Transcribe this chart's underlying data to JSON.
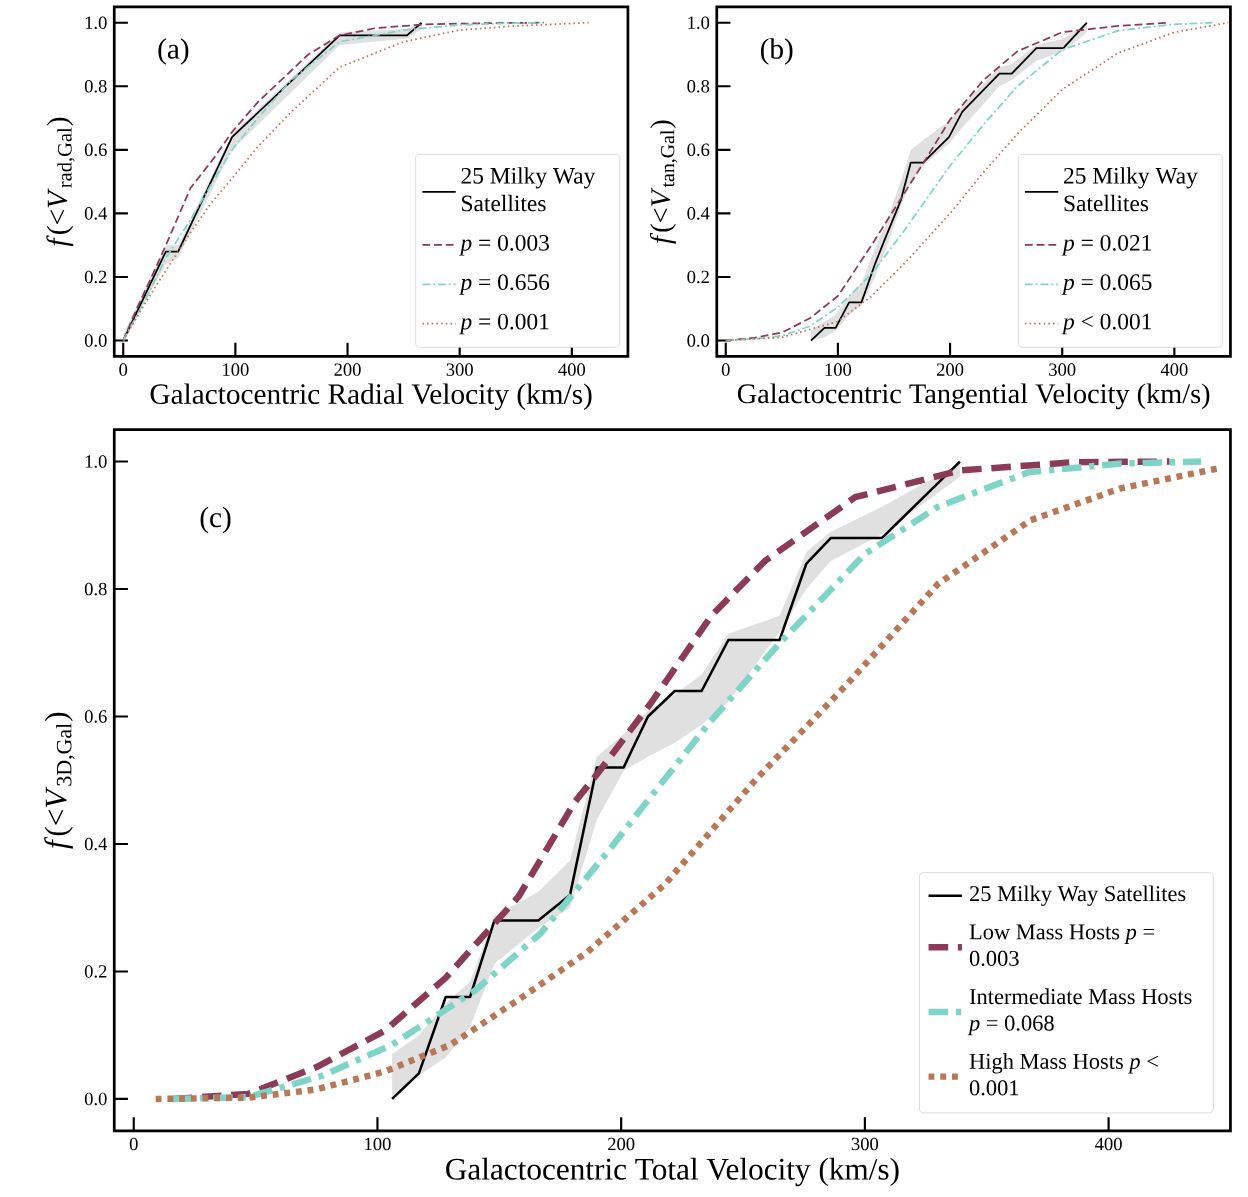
{
  "chart_data": [
    {
      "type": "line",
      "annotations": [
        "(a)"
      ],
      "xlabel": "Galactocentric Radial Velocity (km/s)",
      "ylabel": "*f*(<*V*$_{rad,Gal}$)",
      "xlim": [
        -8,
        450
      ],
      "ylim": [
        -0.05,
        1.05
      ],
      "xticks": [
        0,
        100,
        200,
        300,
        400
      ],
      "yticks": [
        {
          "value": 0,
          "label": "0.0"
        },
        {
          "value": 0.2,
          "label": "0.2"
        },
        {
          "value": 0.4,
          "label": "0.4"
        },
        {
          "value": 0.6,
          "label": "0.6"
        },
        {
          "value": 0.8,
          "label": "0.8"
        },
        {
          "value": 1,
          "label": "1.0"
        }
      ],
      "legend": "bottom right",
      "series": [
        {
          "name": "25 Milky Way Satellites",
          "color": "#000000",
          "line_style": "solid",
          "x": [
            0,
            38,
            49,
            97,
            193,
            253,
            266
          ],
          "values": [
            0,
            0.28,
            0.28,
            0.64,
            0.96,
            0.96,
            1.0
          ],
          "lower": [
            0,
            0.24,
            0.26,
            0.6,
            0.93,
            0.95,
            0.98
          ],
          "upper": [
            0.02,
            0.3,
            0.3,
            0.65,
            0.97,
            0.98,
            1.0
          ]
        },
        {
          "name": "*p* = 0.003",
          "color": "#8b3a58",
          "line_style": "dashed",
          "x": [
            0,
            12,
            24,
            38,
            60,
            80,
            97,
            120,
            135,
            150,
            165,
            193,
            225,
            270,
            330,
            375
          ],
          "values": [
            0,
            0.1,
            0.19,
            0.3,
            0.48,
            0.57,
            0.656,
            0.75,
            0.8,
            0.85,
            0.9,
            0.96,
            0.983,
            0.995,
            0.999,
            1.0
          ]
        },
        {
          "name": "*p* = 0.656",
          "color": "#7fd4c8",
          "line_style": "dashdot",
          "x": [
            0,
            20,
            38,
            60,
            80,
            97,
            120,
            150,
            193,
            250,
            300,
            350,
            372
          ],
          "values": [
            0,
            0.13,
            0.26,
            0.38,
            0.5,
            0.6,
            0.7,
            0.82,
            0.94,
            0.977,
            0.993,
            0.999,
            1.0
          ]
        },
        {
          "name": "*p* = 0.001",
          "color": "#b87757",
          "line_style": "dotted",
          "x": [
            0,
            20,
            38,
            60,
            80,
            97,
            120,
            150,
            193,
            250,
            300,
            350,
            415
          ],
          "values": [
            0,
            0.12,
            0.22,
            0.34,
            0.44,
            0.51,
            0.61,
            0.72,
            0.86,
            0.94,
            0.977,
            0.99,
            1.0
          ]
        }
      ]
    },
    {
      "type": "line",
      "annotations": [
        "(b)"
      ],
      "xlabel": "Galactocentric Tangential Velocity (km/s)",
      "ylabel": "*f*(<*V*$_{tan,Gal}$)",
      "xlim": [
        -8,
        450
      ],
      "ylim": [
        -0.05,
        1.05
      ],
      "xticks": [
        0,
        100,
        200,
        300,
        400
      ],
      "yticks": [
        {
          "value": 0,
          "label": "0.0"
        },
        {
          "value": 0.2,
          "label": "0.2"
        },
        {
          "value": 0.4,
          "label": "0.4"
        },
        {
          "value": 0.6,
          "label": "0.6"
        },
        {
          "value": 0.8,
          "label": "0.8"
        },
        {
          "value": 1,
          "label": "1.0"
        }
      ],
      "legend": "bottom right",
      "series": [
        {
          "name": "25 Milky Way Satellites",
          "color": "#000000",
          "line_style": "solid",
          "x": [
            76,
            88,
            98,
            110,
            121,
            133,
            142,
            156,
            165,
            176,
            199,
            211,
            244,
            255,
            277,
            301,
            322
          ],
          "values": [
            0,
            0.04,
            0.04,
            0.12,
            0.12,
            0.24,
            0.32,
            0.44,
            0.56,
            0.56,
            0.64,
            0.72,
            0.84,
            0.84,
            0.92,
            0.92,
            1.0
          ],
          "lower": [
            0,
            0.01,
            0.03,
            0.08,
            0.11,
            0.2,
            0.28,
            0.42,
            0.5,
            0.55,
            0.62,
            0.67,
            0.8,
            0.82,
            0.88,
            0.91,
            0.97
          ],
          "upper": [
            0.03,
            0.06,
            0.08,
            0.14,
            0.18,
            0.29,
            0.36,
            0.5,
            0.6,
            0.63,
            0.69,
            0.74,
            0.86,
            0.87,
            0.93,
            0.95,
            1.0
          ]
        },
        {
          "name": "*p* = 0.021",
          "color": "#8b3a58",
          "line_style": "dashed",
          "x": [
            0,
            25,
            50,
            75,
            100,
            130,
            155,
            180,
            200,
            230,
            260,
            300,
            350,
            394
          ],
          "values": [
            0,
            0.008,
            0.025,
            0.07,
            0.14,
            0.3,
            0.44,
            0.58,
            0.695,
            0.82,
            0.91,
            0.97,
            0.99,
            1.0
          ]
        },
        {
          "name": "*p* = 0.065",
          "color": "#7fd4c8",
          "line_style": "dashdot",
          "x": [
            0,
            25,
            50,
            75,
            100,
            130,
            160,
            200,
            230,
            260,
            300,
            350,
            400,
            434
          ],
          "values": [
            0,
            0.005,
            0.015,
            0.045,
            0.105,
            0.21,
            0.35,
            0.55,
            0.68,
            0.8,
            0.915,
            0.975,
            0.995,
            1.0
          ]
        },
        {
          "name": "*p* < 0.001",
          "color": "#b87757",
          "line_style": "dotted",
          "x": [
            0,
            50,
            100,
            130,
            160,
            200,
            230,
            260,
            300,
            350,
            400,
            448
          ],
          "values": [
            0,
            0.01,
            0.06,
            0.14,
            0.245,
            0.4,
            0.53,
            0.65,
            0.79,
            0.905,
            0.97,
            1.0
          ]
        }
      ]
    },
    {
      "type": "line",
      "annotations": [
        "(c)"
      ],
      "xlabel": "Galactocentric Total Velocity (km/s)",
      "ylabel": "*f*(<*V*$_{3D,Gal}$)",
      "xlim": [
        -8,
        450
      ],
      "ylim": [
        -0.05,
        1.05
      ],
      "xticks": [
        0,
        100,
        200,
        300,
        400
      ],
      "yticks": [
        {
          "value": 0,
          "label": "0.0"
        },
        {
          "value": 0.2,
          "label": "0.2"
        },
        {
          "value": 0.4,
          "label": "0.4"
        },
        {
          "value": 0.6,
          "label": "0.6"
        },
        {
          "value": 0.8,
          "label": "0.8"
        },
        {
          "value": 1,
          "label": "1.0"
        }
      ],
      "legend": "bottom right",
      "series": [
        {
          "name": "25 Milky Way Satellites",
          "color": "#000000",
          "line_style": "solid",
          "x": [
            106,
            117,
            128,
            138,
            148,
            166,
            179,
            190,
            201,
            211,
            222,
            233,
            244,
            265,
            276,
            286,
            307,
            339
          ],
          "values": [
            0,
            0.04,
            0.16,
            0.16,
            0.28,
            0.28,
            0.32,
            0.52,
            0.52,
            0.6,
            0.64,
            0.64,
            0.72,
            0.72,
            0.84,
            0.88,
            0.88,
            1.0
          ],
          "lower": [
            0.005,
            0.037,
            0.065,
            0.113,
            0.212,
            0.268,
            0.3,
            0.438,
            0.515,
            0.537,
            0.559,
            0.587,
            0.623,
            0.733,
            0.8,
            0.844,
            0.886,
            0.976
          ],
          "upper": [
            0.07,
            0.1,
            0.15,
            0.184,
            0.287,
            0.325,
            0.374,
            0.537,
            0.572,
            0.609,
            0.634,
            0.666,
            0.73,
            0.758,
            0.858,
            0.89,
            0.929,
            0.997
          ]
        },
        {
          "name": "Low Mass Hosts *p* = 0.003",
          "color": "#8b3a58",
          "line_style": "dashed",
          "x": [
            16,
            47,
            75,
            103,
            128,
            158,
            181,
            190,
            212,
            237,
            259,
            296,
            339,
            386,
            425
          ],
          "values": [
            0,
            0.008,
            0.05,
            0.107,
            0.19,
            0.318,
            0.466,
            0.509,
            0.62,
            0.758,
            0.844,
            0.944,
            0.986,
            0.999,
            1.0
          ]
        },
        {
          "name": "Intermediate Mass Hosts *p* = 0.068",
          "color": "#7fd4c8",
          "line_style": "dashdot",
          "x": [
            16,
            47,
            77,
            106,
            140,
            167,
            195,
            209,
            237,
            265,
            300,
            330,
            367,
            405,
            438
          ],
          "values": [
            0,
            0.003,
            0.036,
            0.085,
            0.17,
            0.26,
            0.39,
            0.459,
            0.594,
            0.715,
            0.855,
            0.929,
            0.983,
            0.997,
            1.0
          ]
        },
        {
          "name": "High Mass Hosts *p* < 0.001",
          "color": "#b87757",
          "line_style": "dotted",
          "x": [
            9,
            47,
            75,
            103,
            130,
            158,
            186,
            218,
            255,
            293,
            330,
            368,
            405,
            446
          ],
          "values": [
            0,
            0.002,
            0.015,
            0.043,
            0.085,
            0.156,
            0.23,
            0.337,
            0.5,
            0.652,
            0.808,
            0.908,
            0.958,
            0.99
          ]
        }
      ]
    }
  ]
}
